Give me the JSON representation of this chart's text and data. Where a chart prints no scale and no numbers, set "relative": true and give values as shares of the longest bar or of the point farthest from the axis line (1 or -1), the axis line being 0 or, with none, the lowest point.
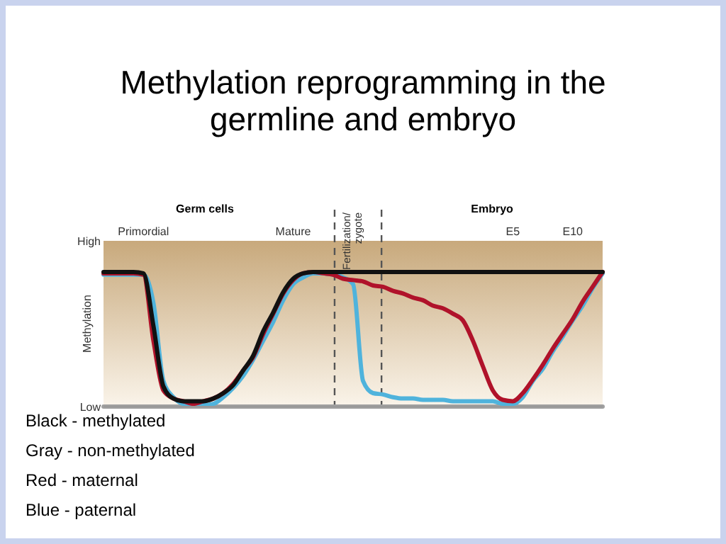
{
  "chart_data": {
    "type": "line",
    "title": "Methylation reprogramming in the germline and embryo",
    "ylabel": "Methylation",
    "relative": true,
    "categories": [
      null,
      null,
      null,
      null,
      "Primordial",
      null,
      null,
      null,
      null,
      null,
      null,
      null,
      null,
      null,
      null,
      null,
      null,
      null,
      null,
      "Mature",
      null,
      null,
      null,
      null,
      null,
      "Fertilization/zygote",
      null,
      null,
      null,
      null,
      null,
      null,
      null,
      null,
      null,
      null,
      null,
      null,
      null,
      null,
      null,
      "E5",
      null,
      null,
      null,
      null,
      null,
      "E10",
      null,
      null,
      null
    ],
    "marker": "none",
    "line_style": "solid",
    "annotations": [
      "Germ cells",
      "Embryo",
      "High",
      "Low",
      "Black - methylated",
      "Gray - non-methylated",
      "Red - maternal",
      "Blue - paternal"
    ],
    "series": [
      {
        "color": "#a0a0a0",
        "values": [
          0,
          0,
          0,
          0,
          0,
          0,
          0,
          0,
          0,
          0,
          0,
          0,
          0,
          0,
          0,
          0,
          0,
          0,
          0,
          0,
          0,
          0,
          0,
          0,
          0,
          0,
          0,
          0,
          0,
          0,
          0,
          0,
          0,
          0,
          0,
          0,
          0,
          0,
          0,
          0,
          0,
          0,
          0,
          0,
          0,
          0,
          0,
          0,
          0,
          0,
          0
        ]
      },
      {
        "color": "#4fb3dc",
        "values": [
          0.98,
          0.98,
          0.98,
          0.98,
          0.98,
          0.77,
          0.19,
          0.07,
          0.02,
          0.01,
          0.01,
          0.02,
          0.07,
          0.14,
          0.23,
          0.35,
          0.49,
          0.63,
          0.79,
          0.91,
          0.96,
          0.99,
          0.99,
          0.98,
          0.96,
          0.91,
          0.19,
          0.1,
          0.09,
          0.07,
          0.06,
          0.06,
          0.05,
          0.05,
          0.05,
          0.04,
          0.04,
          0.04,
          0.04,
          0.04,
          0.02,
          0.02,
          0.07,
          0.19,
          0.28,
          0.41,
          0.52,
          0.64,
          0.75,
          0.88,
          0.99
        ]
      },
      {
        "color": "#b0122a",
        "values": [
          0.99,
          0.99,
          0.99,
          0.99,
          0.98,
          0.49,
          0.12,
          0.06,
          0.04,
          0.02,
          0.04,
          0.06,
          0.1,
          0.17,
          0.27,
          0.37,
          0.54,
          0.69,
          0.84,
          0.94,
          0.99,
          1,
          0.99,
          0.98,
          0.95,
          0.94,
          0.93,
          0.9,
          0.89,
          0.86,
          0.84,
          0.81,
          0.79,
          0.75,
          0.73,
          0.69,
          0.64,
          0.49,
          0.3,
          0.12,
          0.05,
          0.04,
          0.1,
          0.2,
          0.31,
          0.43,
          0.54,
          0.65,
          0.78,
          0.89,
          1
        ]
      },
      {
        "color": "#111111",
        "values": [
          1,
          1,
          1,
          1,
          0.99,
          0.6,
          0.15,
          0.06,
          0.04,
          0.04,
          0.04,
          0.06,
          0.1,
          0.16,
          0.27,
          0.38,
          0.56,
          0.7,
          0.85,
          0.95,
          0.99,
          1,
          1,
          1,
          1,
          1,
          1,
          1,
          1,
          1,
          1,
          1,
          1,
          1,
          1,
          1,
          1,
          1,
          1,
          1,
          1,
          1,
          1,
          1,
          1,
          1,
          1,
          1,
          1,
          1,
          1
        ]
      }
    ]
  }
}
